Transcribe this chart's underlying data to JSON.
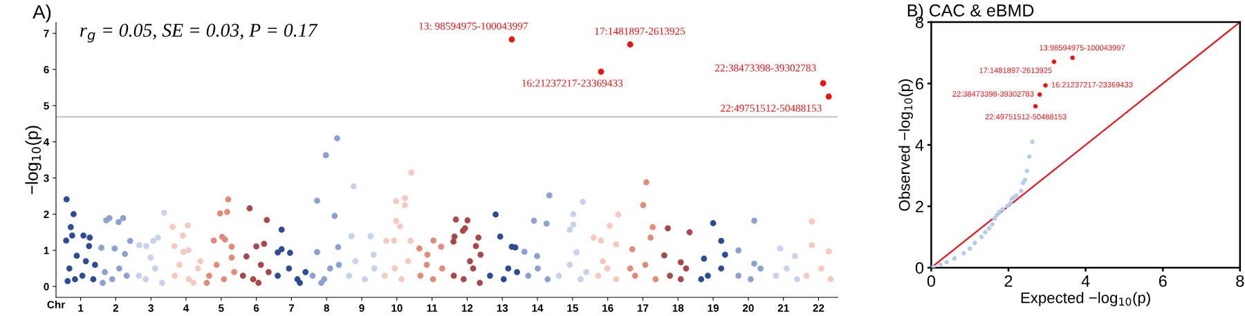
{
  "chart_data": [
    {
      "type": "scatter",
      "title": "A)",
      "xlabel": "Chr",
      "ylabel": "−log$_{10}$(p)",
      "xlim": [
        0.3,
        22.55
      ],
      "ylim": [
        -0.3,
        7.3
      ],
      "yticks": [
        0,
        1,
        2,
        3,
        4,
        5,
        6,
        7
      ],
      "xticks": [
        1,
        2,
        3,
        4,
        5,
        6,
        7,
        8,
        9,
        10,
        11,
        12,
        13,
        14,
        15,
        16,
        17,
        18,
        19,
        20,
        21,
        22
      ],
      "grid": false,
      "marker": "circle",
      "series": [
        {
          "color": "#2e4b95",
          "x": [
            0.6,
            0.8,
            0.72,
            0.76,
            0.59,
            1.08,
            1.26,
            1.24,
            0.89,
            0.68,
            1.15,
            0.63,
            0.84,
            1.05,
            1.36,
            1.41
          ],
          "values": [
            2.41,
            2.0,
            1.64,
            1.41,
            1.27,
            1.41,
            1.35,
            1.12,
            0.85,
            0.5,
            0.7,
            0.15,
            0.2,
            0.3,
            0.2,
            0.6
          ]
        },
        {
          "color": "#8da0d2",
          "x": [
            1.82,
            1.73,
            2.08,
            2.21,
            2.41,
            1.59,
            1.97,
            1.69,
            1.9,
            2.1,
            2.31,
            1.63,
            2.26
          ],
          "values": [
            1.89,
            1.83,
            1.78,
            1.89,
            1.26,
            1.07,
            1.05,
            0.4,
            0.2,
            0.5,
            0.3,
            0.1,
            0.9
          ]
        },
        {
          "color": "#c8d2ec",
          "x": [
            3.38,
            3.2,
            2.67,
            3.07,
            2.87,
            2.66,
            2.85,
            3.12,
            3.32,
            2.99
          ],
          "values": [
            2.04,
            1.35,
            1.14,
            1.26,
            1.12,
            0.3,
            0.2,
            0.5,
            0.1,
            0.8
          ]
        },
        {
          "color": "#f6c9c0",
          "x": [
            3.62,
            4.05,
            3.91,
            3.67,
            3.93,
            4.07,
            3.68,
            4.08,
            4.34,
            4.21,
            3.81,
            4.41
          ],
          "values": [
            1.65,
            1.69,
            1.41,
            1.12,
            0.96,
            1.0,
            0.3,
            0.2,
            0.5,
            0.1,
            0.6,
            0.7
          ]
        },
        {
          "color": "#e38b7a",
          "x": [
            5.2,
            5.17,
            4.97,
            5.03,
            5.11,
            4.79,
            5.3,
            4.66,
            4.87,
            5.08,
            5.37,
            5.3,
            4.59
          ],
          "values": [
            2.41,
            2.06,
            2.02,
            1.37,
            1.3,
            1.27,
            1.1,
            0.3,
            0.6,
            0.2,
            0.4,
            0.8,
            0.1
          ]
        },
        {
          "color": "#a8484a",
          "x": [
            5.81,
            6.3,
            6.22,
            6.0,
            5.72,
            5.62,
            5.91,
            6.13,
            6.35,
            6.06
          ],
          "values": [
            2.16,
            1.84,
            1.18,
            1.11,
            0.83,
            0.3,
            0.2,
            0.6,
            0.4,
            0.1
          ]
        },
        {
          "color": "#2e4b95",
          "x": [
            6.72,
            6.72,
            6.96,
            6.61,
            6.61,
            6.93,
            7.17,
            7.4,
            7.24
          ],
          "values": [
            1.57,
            1.03,
            0.93,
            0.94,
            0.3,
            0.5,
            0.2,
            0.4,
            0.1
          ]
        },
        {
          "color": "#8da0d2",
          "x": [
            8.3,
            7.98,
            7.73,
            8.23,
            8.33,
            7.73,
            7.6,
            7.93,
            8.1,
            8.35,
            7.85
          ],
          "values": [
            4.1,
            3.63,
            2.37,
            1.95,
            1.09,
            0.95,
            0.3,
            0.2,
            0.5,
            0.6,
            0.1
          ]
        },
        {
          "color": "#c8d2ec",
          "x": [
            8.77,
            8.71,
            9.25,
            9.34,
            8.64,
            8.82,
            9.09,
            9.36
          ],
          "values": [
            2.77,
            1.39,
            1.39,
            0.88,
            0.3,
            0.7,
            0.2,
            0.5
          ]
        },
        {
          "color": "#f6c9c0",
          "x": [
            10.41,
            10.23,
            9.98,
            10.23,
            9.98,
            10.09,
            10.39,
            9.7,
            9.92,
            9.66,
            9.94,
            10.13,
            10.32
          ],
          "values": [
            3.15,
            2.44,
            2.36,
            2.25,
            1.81,
            1.66,
            1.26,
            1.26,
            1.27,
            0.3,
            0.5,
            0.2,
            0.7
          ]
        },
        {
          "color": "#e38b7a",
          "x": [
            11.04,
            10.64,
            10.87,
            11.26,
            10.67,
            11.03,
            11.29,
            10.85
          ],
          "values": [
            1.27,
            1.05,
            0.88,
            1.1,
            0.3,
            0.2,
            0.5,
            0.6
          ]
        },
        {
          "color": "#a8484a",
          "x": [
            11.68,
            12.01,
            11.94,
            11.88,
            11.64,
            11.61,
            12.32,
            12.25,
            12.38,
            11.62,
            11.9,
            12.17,
            12.36,
            12.08
          ],
          "values": [
            1.85,
            1.83,
            1.61,
            1.54,
            1.38,
            1.24,
            1.35,
            1.12,
            0.88,
            0.3,
            0.2,
            0.5,
            0.1,
            0.7
          ]
        },
        {
          "color": "#2e4b95",
          "x": [
            12.81,
            12.94,
            13.27,
            13.37,
            12.65,
            13.04,
            13.17,
            13.42
          ],
          "values": [
            1.99,
            1.38,
            1.1,
            1.08,
            0.3,
            0.2,
            0.5,
            0.4
          ]
        },
        {
          "color": "#8da0d2",
          "x": [
            14.34,
            13.9,
            14.26,
            13.63,
            13.99,
            13.74,
            14.01,
            14.29
          ],
          "values": [
            2.52,
            1.82,
            1.74,
            0.96,
            0.84,
            0.3,
            0.5,
            0.2
          ]
        },
        {
          "color": "#c8d2ec",
          "x": [
            15.29,
            15.02,
            15.02,
            14.92,
            15.11,
            14.61,
            14.92,
            15.23,
            15.39
          ],
          "values": [
            2.34,
            2.0,
            1.71,
            1.57,
            0.94,
            0.3,
            0.6,
            0.2,
            0.4
          ]
        },
        {
          "color": "#f6c9c0",
          "x": [
            16.3,
            16.06,
            15.6,
            15.81,
            16.24,
            15.73,
            15.99,
            16.24,
            15.86
          ],
          "values": [
            1.99,
            1.68,
            1.35,
            1.27,
            1.16,
            0.3,
            0.5,
            0.2,
            0.7
          ]
        },
        {
          "color": "#e38b7a",
          "x": [
            17.1,
            17.01,
            17.28,
            17.22,
            16.7,
            16.78,
            17.07,
            17.36,
            16.64
          ],
          "values": [
            2.88,
            2.25,
            1.64,
            1.35,
            1.03,
            0.3,
            0.6,
            0.2,
            0.5
          ]
        },
        {
          "color": "#a8484a",
          "x": [
            17.71,
            18.33,
            17.61,
            18.08,
            17.77,
            18.08,
            18.23
          ],
          "values": [
            1.61,
            1.5,
            0.86,
            0.67,
            0.3,
            0.2,
            0.5
          ]
        },
        {
          "color": "#2e4b95",
          "x": [
            19.0,
            19.23,
            19.34,
            18.74,
            18.85,
            19.23,
            18.66
          ],
          "values": [
            1.75,
            1.26,
            0.88,
            0.77,
            0.3,
            0.5,
            0.2
          ]
        },
        {
          "color": "#8da0d2",
          "x": [
            20.17,
            19.72,
            20.17,
            19.72,
            20.07,
            20.35
          ],
          "values": [
            1.82,
            1.0,
            0.63,
            0.3,
            0.2,
            0.5
          ]
        },
        {
          "color": "#c8d2ec",
          "x": [
            20.91,
            21.33,
            20.79,
            21.09,
            21.39
          ],
          "values": [
            1.05,
            0.84,
            0.3,
            0.5,
            0.2
          ]
        },
        {
          "color": "#f6c9c0",
          "x": [
            21.81,
            21.81,
            22.29,
            21.66,
            22.08,
            22.34
          ],
          "values": [
            1.8,
            1.14,
            0.97,
            0.3,
            0.5,
            0.2
          ]
        },
        {
          "color": "#ee1111",
          "x": [
            13.27,
            16.64,
            15.81,
            22.13,
            22.29
          ],
          "values": [
            6.83,
            6.69,
            5.94,
            5.62,
            5.25
          ]
        }
      ],
      "ref_lines": [
        {
          "axis": "y",
          "value": 4.69,
          "color": "#c8c8c8"
        }
      ],
      "annotations": [
        "r$_{g}$ = 0.05, SE = 0.03, P = 0.17",
        {
          "text": "13: 98594975-100043997",
          "x": 13.27,
          "y": 6.83
        },
        {
          "text": "17:1481897-2613925",
          "x": 16.64,
          "y": 6.69
        },
        {
          "text": "16:21237217-23369433",
          "x": 15.81,
          "y": 5.94
        },
        {
          "text": "22:38473398-39302783",
          "x": 22.13,
          "y": 5.62
        },
        {
          "text": "22:49751512-50488153",
          "x": 22.29,
          "y": 5.25
        }
      ]
    },
    {
      "type": "scatter",
      "title": "B) CAC & eBMD",
      "xlabel": "Expected −log$_{10}$(p)",
      "ylabel": "Observed −log$_{10}$(p)",
      "xlim": [
        0,
        8
      ],
      "ylim": [
        0,
        8
      ],
      "xticks": [
        0,
        2,
        4,
        6,
        8
      ],
      "yticks": [
        0,
        2,
        4,
        6,
        8
      ],
      "grid": false,
      "marker": "circle",
      "series": [
        {
          "color": "#b3cde8",
          "x": [
            0.05,
            0.24,
            0.4,
            0.6,
            0.84,
            1.0,
            1.13,
            1.3,
            1.4,
            1.5,
            1.58,
            1.64,
            1.7,
            1.76,
            1.85,
            1.97,
            2.05,
            2.09,
            2.15,
            2.21,
            2.33,
            2.38,
            2.43,
            2.48,
            2.54,
            2.62
          ],
          "values": [
            0.02,
            0.1,
            0.18,
            0.3,
            0.47,
            0.62,
            0.81,
            1.0,
            1.15,
            1.28,
            1.41,
            1.6,
            1.72,
            1.82,
            1.9,
            2.01,
            2.1,
            2.24,
            2.3,
            2.35,
            2.5,
            2.76,
            2.86,
            3.15,
            3.62,
            4.1
          ]
        },
        {
          "color": "#ee1111",
          "x": [
            3.66,
            3.18,
            2.96,
            2.81,
            2.7
          ],
          "values": [
            6.84,
            6.71,
            5.94,
            5.64,
            5.26
          ]
        },
        {
          "type": "line",
          "marker": "none",
          "color": "#e8141c",
          "x": [
            0,
            8
          ],
          "values": [
            0,
            8
          ]
        }
      ],
      "annotations": [
        {
          "text": "13:98594975-100043997",
          "x": 3.66,
          "y": 6.84
        },
        {
          "text": "17:1481897-2613925",
          "x": 3.18,
          "y": 6.71
        },
        {
          "text": "16:21237217-23369433",
          "x": 2.96,
          "y": 5.94
        },
        {
          "text": "22:38473398-39302783",
          "x": 2.81,
          "y": 5.64
        },
        {
          "text": "22:49751512-50488153",
          "x": 2.7,
          "y": 5.26
        }
      ]
    }
  ]
}
